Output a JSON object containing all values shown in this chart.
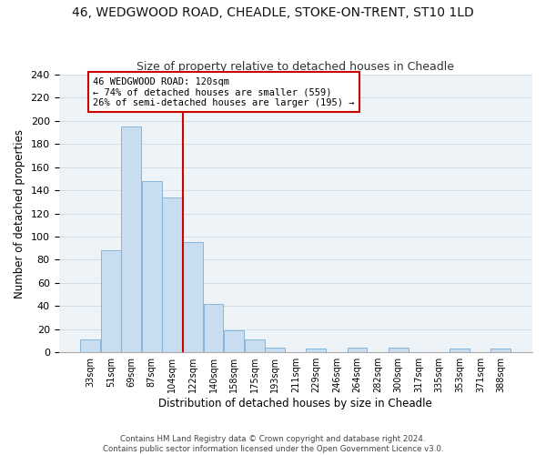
{
  "title": "46, WEDGWOOD ROAD, CHEADLE, STOKE-ON-TRENT, ST10 1LD",
  "subtitle": "Size of property relative to detached houses in Cheadle",
  "xlabel": "Distribution of detached houses by size in Cheadle",
  "ylabel": "Number of detached properties",
  "bar_color": "#c8ddf0",
  "bar_edge_color": "#7aaed4",
  "categories": [
    "33sqm",
    "51sqm",
    "69sqm",
    "87sqm",
    "104sqm",
    "122sqm",
    "140sqm",
    "158sqm",
    "175sqm",
    "193sqm",
    "211sqm",
    "229sqm",
    "246sqm",
    "264sqm",
    "282sqm",
    "300sqm",
    "317sqm",
    "335sqm",
    "353sqm",
    "371sqm",
    "388sqm"
  ],
  "values": [
    11,
    88,
    195,
    148,
    134,
    95,
    42,
    19,
    11,
    4,
    0,
    3,
    0,
    4,
    0,
    4,
    0,
    0,
    3,
    0,
    3
  ],
  "vline_x_idx": 5,
  "vline_color": "#cc0000",
  "annotation_line1": "46 WEDGWOOD ROAD: 120sqm",
  "annotation_line2": "← 74% of detached houses are smaller (559)",
  "annotation_line3": "26% of semi-detached houses are larger (195) →",
  "annotation_box_color": "#ffffff",
  "annotation_box_edge": "#cc0000",
  "ylim": [
    0,
    240
  ],
  "yticks": [
    0,
    20,
    40,
    60,
    80,
    100,
    120,
    140,
    160,
    180,
    200,
    220,
    240
  ],
  "footnote1": "Contains HM Land Registry data © Crown copyright and database right 2024.",
  "footnote2": "Contains public sector information licensed under the Open Government Licence v3.0."
}
